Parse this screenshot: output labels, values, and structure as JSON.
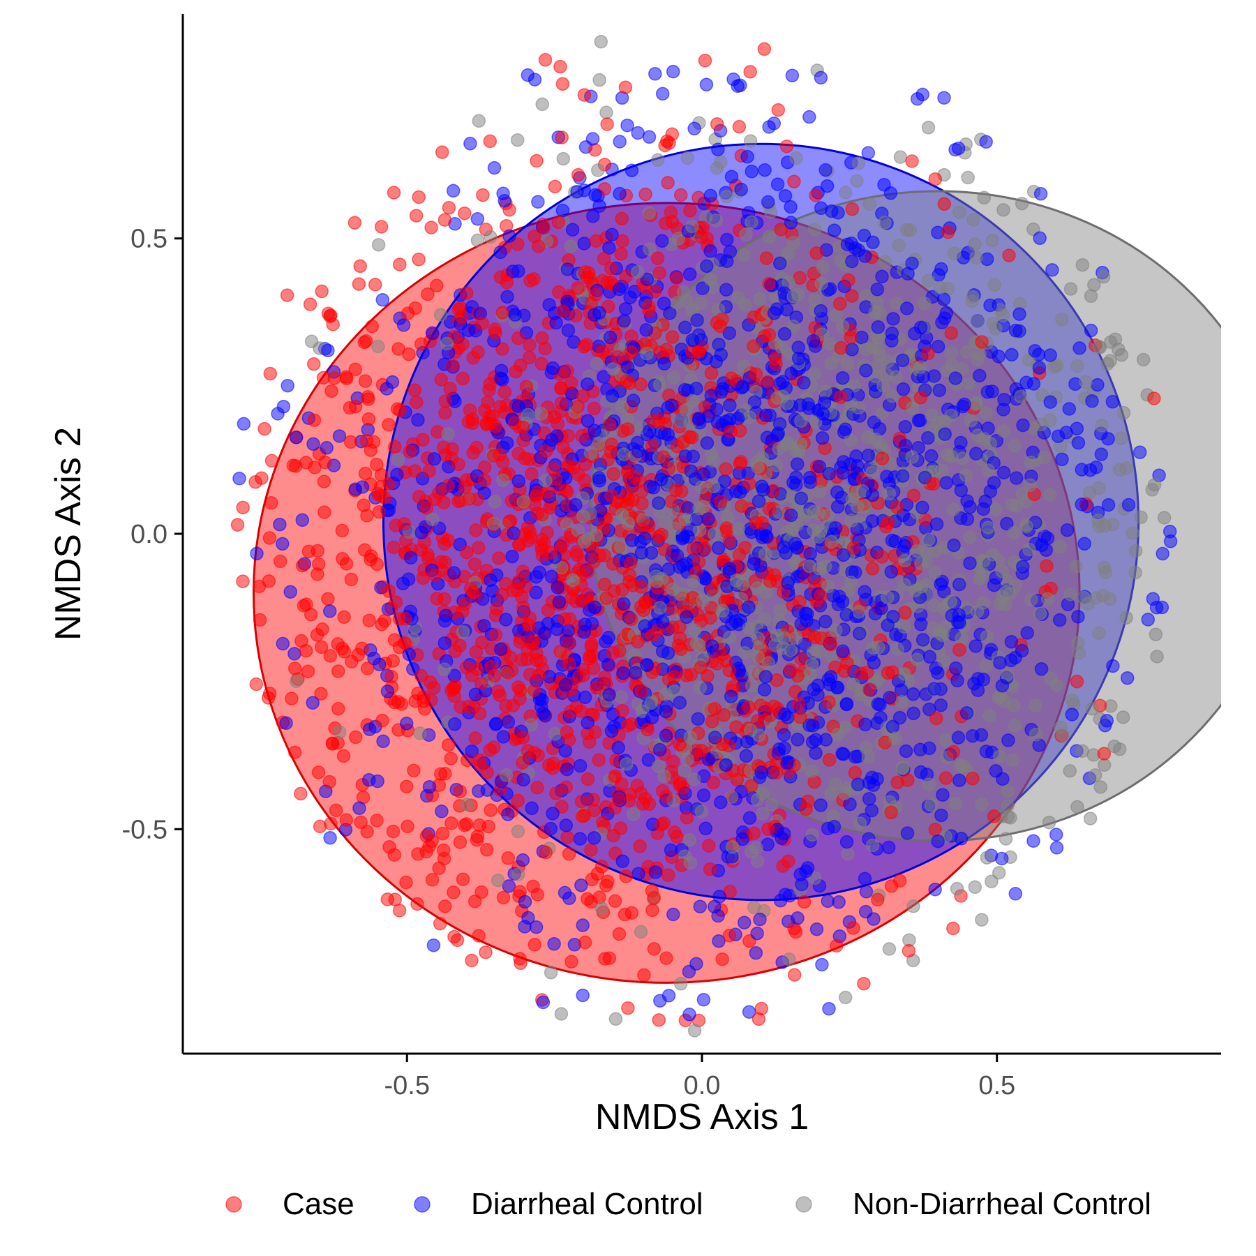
{
  "chart_data": {
    "type": "scatter",
    "title": "",
    "xlabel": "NMDS Axis 1",
    "ylabel": "NMDS Axis 2",
    "xlim": [
      -0.88,
      0.88
    ],
    "ylim": [
      -0.88,
      0.88
    ],
    "x_ticks": [
      -0.5,
      0.0,
      0.5
    ],
    "x_tick_labels": [
      "-0.5",
      "0.0",
      "0.5"
    ],
    "y_ticks": [
      -0.5,
      0.0,
      0.5
    ],
    "y_tick_labels": [
      "-0.5",
      "0.0",
      "0.5"
    ],
    "grid": false,
    "legend_position": "bottom",
    "point_alpha": 0.5,
    "series": [
      {
        "name": "Case",
        "color": "#ff0000",
        "ellipse": {
          "cx": -0.06,
          "cy": -0.1,
          "rx": 0.7,
          "ry": 0.66
        },
        "point_cloud": {
          "cx": -0.2,
          "cy": -0.05,
          "sx": 0.3,
          "sy": 0.36,
          "count": 1400
        }
      },
      {
        "name": "Diarrheal Control",
        "color": "#0000ff",
        "ellipse": {
          "cx": 0.1,
          "cy": 0.02,
          "rx": 0.64,
          "ry": 0.64
        },
        "point_cloud": {
          "cx": 0.05,
          "cy": 0.0,
          "sx": 0.36,
          "sy": 0.36,
          "count": 1400
        }
      },
      {
        "name": "Non-Diarrheal Control",
        "color": "#808080",
        "ellipse": {
          "cx": 0.4,
          "cy": 0.03,
          "rx": 0.59,
          "ry": 0.55
        },
        "point_cloud": {
          "cx": 0.25,
          "cy": 0.05,
          "sx": 0.32,
          "sy": 0.32,
          "count": 900
        }
      }
    ]
  }
}
